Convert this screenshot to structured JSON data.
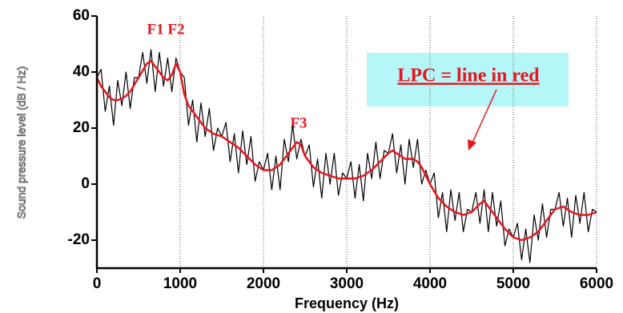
{
  "chart_data": {
    "type": "line",
    "xlabel": "Frequency (Hz)",
    "ylabel": "Sound pressure level (dB / Hz)",
    "annotations": [
      "F1 F2",
      "F3",
      "LPC = line in red"
    ],
    "x": [
      0,
      50,
      100,
      150,
      200,
      250,
      300,
      350,
      400,
      450,
      500,
      550,
      600,
      650,
      700,
      750,
      800,
      850,
      900,
      950,
      1000,
      1050,
      1100,
      1150,
      1200,
      1250,
      1300,
      1350,
      1400,
      1450,
      1500,
      1550,
      1600,
      1650,
      1700,
      1750,
      1800,
      1850,
      1900,
      1950,
      2000,
      2050,
      2100,
      2150,
      2200,
      2250,
      2300,
      2350,
      2400,
      2450,
      2500,
      2550,
      2600,
      2650,
      2700,
      2750,
      2800,
      2850,
      2900,
      2950,
      3000,
      3050,
      3100,
      3150,
      3200,
      3250,
      3300,
      3350,
      3400,
      3450,
      3500,
      3550,
      3600,
      3650,
      3700,
      3750,
      3800,
      3850,
      3900,
      3950,
      4000,
      4050,
      4100,
      4150,
      4200,
      4250,
      4300,
      4350,
      4400,
      4450,
      4500,
      4550,
      4600,
      4650,
      4700,
      4750,
      4800,
      4850,
      4900,
      4950,
      5000,
      5050,
      5100,
      5150,
      5200,
      5250,
      5300,
      5350,
      5400,
      5450,
      5500,
      5550,
      5600,
      5650,
      5700,
      5750,
      5800,
      5850,
      5900,
      5950,
      6000
    ],
    "series": [
      {
        "color": "#000000",
        "values": [
          38,
          41,
          26,
          35,
          21,
          37,
          28,
          40,
          27,
          38,
          38,
          47,
          36,
          48,
          33,
          47,
          35,
          45,
          33,
          45,
          40,
          38,
          21,
          30,
          15,
          29,
          17,
          27,
          12,
          20,
          17,
          22,
          8,
          18,
          4,
          19,
          7,
          17,
          1,
          8,
          5,
          11,
          -2,
          10,
          -2,
          16,
          8,
          21,
          9,
          16,
          10,
          14,
          -1,
          9,
          -5,
          11,
          0,
          11,
          -4,
          4,
          2,
          8,
          -5,
          7,
          -6,
          11,
          2,
          15,
          2,
          12,
          11,
          18,
          4,
          14,
          0,
          16,
          6,
          16,
          0,
          5,
          0,
          4,
          -12,
          -3,
          -17,
          -2,
          -13,
          -3,
          -17,
          -9,
          -10,
          -3,
          -14,
          -2,
          -17,
          -3,
          -15,
          -6,
          -22,
          -16,
          -19,
          -14,
          -27,
          -16,
          -28,
          -11,
          -20,
          -7,
          -19,
          -9,
          -9,
          -3,
          -15,
          -5,
          -19,
          -4,
          -14,
          -3,
          -17,
          -9,
          -10
        ]
      },
      {
        "color": "#e8141e",
        "values": [
          38,
          35,
          33,
          31,
          30,
          30,
          30.5,
          31.5,
          33,
          35.5,
          38,
          40.5,
          43,
          44,
          42,
          40,
          38,
          37,
          39,
          43,
          40,
          32,
          28,
          26,
          24,
          22,
          20,
          19,
          18,
          17.5,
          17,
          16,
          15,
          14,
          13,
          11.5,
          10,
          8.5,
          7,
          6,
          5,
          5,
          5,
          6,
          7,
          9,
          11,
          13,
          15,
          14,
          10,
          8,
          6,
          5,
          4,
          3.5,
          3,
          2.5,
          2,
          2,
          2,
          2,
          2,
          2.5,
          3,
          4,
          5,
          6.5,
          8,
          9.5,
          11,
          12,
          11,
          10,
          9,
          9,
          9,
          8,
          6,
          3,
          0,
          -2.5,
          -5,
          -6.5,
          -8,
          -9,
          -10,
          -10.5,
          -11,
          -10.5,
          -10,
          -8.5,
          -7,
          -6,
          -8,
          -10,
          -12,
          -14,
          -16,
          -17.5,
          -19,
          -19.5,
          -20,
          -19.5,
          -19,
          -18,
          -17,
          -15,
          -13,
          -11,
          -9,
          -8.5,
          -8,
          -9,
          -10,
          -10.5,
          -11,
          -11,
          -11,
          -10.5,
          -10
        ]
      }
    ],
    "xlim": [
      0,
      6000
    ],
    "xticks": [
      0,
      1000,
      2000,
      3000,
      4000,
      5000,
      6000
    ],
    "ylim": [
      -30,
      60
    ],
    "yticks": [
      -20,
      0,
      20,
      40,
      60
    ],
    "grid": "x"
  }
}
